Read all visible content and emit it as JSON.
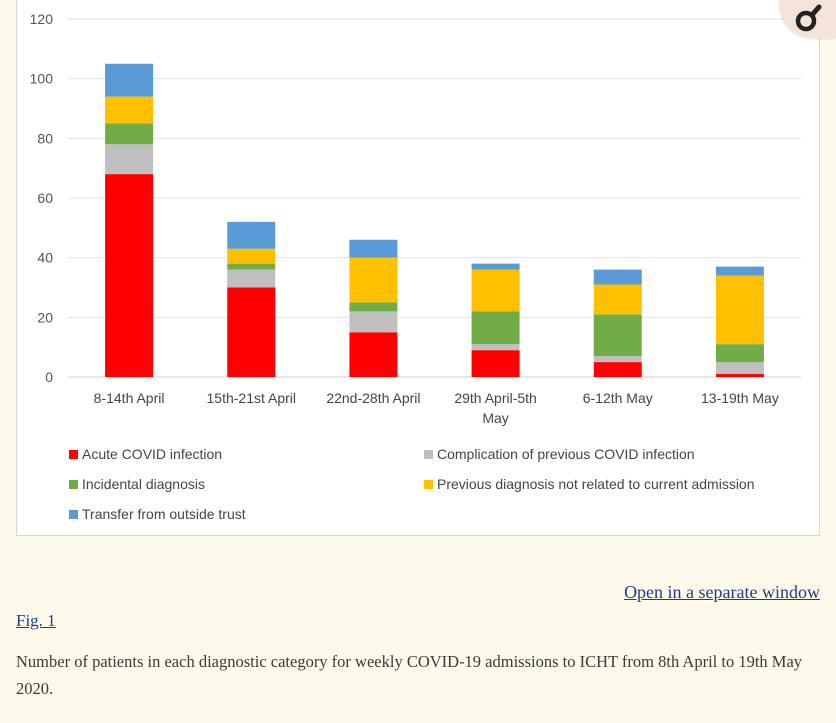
{
  "chart_data": {
    "type": "bar",
    "stacked": true,
    "categories": [
      "8-14th April",
      "15th-21st April",
      "22nd-28th April",
      "29th April-5th May",
      "6-12th May",
      "13-19th May"
    ],
    "category_lines": [
      [
        "8-14th April"
      ],
      [
        "15th-21st April"
      ],
      [
        "22nd-28th April"
      ],
      [
        "29th April-5th",
        "May"
      ],
      [
        "6-12th May"
      ],
      [
        "13-19th May"
      ]
    ],
    "series": [
      {
        "name": "Acute COVID infection",
        "color": "#ff0000",
        "values": [
          68,
          30,
          15,
          9,
          5,
          1
        ]
      },
      {
        "name": "Complication of previous COVID infection",
        "color": "#bfbfbf",
        "values": [
          10,
          6,
          7,
          2,
          2,
          4
        ]
      },
      {
        "name": "Incidental diagnosis",
        "color": "#70ad47",
        "values": [
          7,
          2,
          3,
          11,
          14,
          6
        ]
      },
      {
        "name": "Previous diagnosis not related to current admission",
        "color": "#ffc000",
        "values": [
          9,
          5,
          15,
          14,
          10,
          23
        ]
      },
      {
        "name": "Transfer from outside trust",
        "color": "#5b9bd5",
        "values": [
          11,
          9,
          6,
          2,
          5,
          3
        ]
      }
    ],
    "ylim": [
      0,
      120
    ],
    "yticks": [
      0,
      20,
      40,
      60,
      80,
      100,
      120
    ],
    "grid": true,
    "legend_position": "bottom"
  },
  "zoom_icon": "magnifier-icon",
  "links": {
    "open_window": "Open in a separate window",
    "fig_label": "Fig. 1"
  },
  "caption": "Number of patients in each diagnostic category for weekly COVID-19 admissions to ICHT from 8th April to 19th May 2020."
}
